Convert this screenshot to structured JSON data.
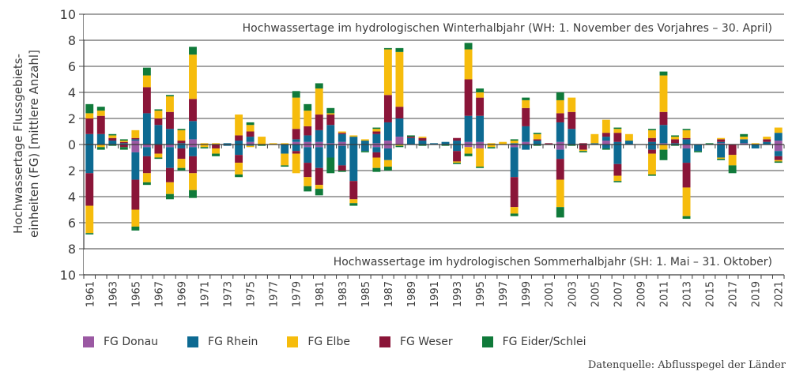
{
  "chart_data": {
    "type": "bar",
    "stacked": true,
    "diverging": true,
    "ylabel_line1": "Hochwassertage Flussgebiets-",
    "ylabel_line2": "einheiten (FG) [mittlere Anzahl]",
    "winter_title": "Hochwassertage im hydrologischen Winterhalbjahr (WH: 1. November des Vorjahres – 30. April)",
    "summer_title": "Hochwassertage im hydrologischen Sommerhalbjahr (SH: 1. Mai – 31. Oktober)",
    "ylim": [
      -10,
      10
    ],
    "yticks": [
      10,
      8,
      6,
      4,
      2,
      0,
      2,
      4,
      6,
      8,
      10
    ],
    "ytick_values": [
      10,
      8,
      6,
      4,
      2,
      0,
      -2,
      -4,
      -6,
      -8,
      -10
    ],
    "grid": true,
    "legend_position": "bottom",
    "years": [
      1961,
      1962,
      1963,
      1964,
      1965,
      1966,
      1967,
      1968,
      1969,
      1970,
      1971,
      1972,
      1973,
      1974,
      1975,
      1976,
      1977,
      1978,
      1979,
      1980,
      1981,
      1982,
      1983,
      1984,
      1985,
      1986,
      1987,
      1988,
      1989,
      1990,
      1991,
      1992,
      1993,
      1994,
      1995,
      1996,
      1997,
      1998,
      1999,
      2000,
      2001,
      2002,
      2003,
      2004,
      2005,
      2006,
      2007,
      2008,
      2009,
      2010,
      2011,
      2012,
      2013,
      2014,
      2015,
      2016,
      2017,
      2018,
      2019,
      2020,
      2021
    ],
    "xtick_labels": [
      "1961",
      "1963",
      "1965",
      "1967",
      "1969",
      "1971",
      "1973",
      "1975",
      "1977",
      "1979",
      "1981",
      "1983",
      "1985",
      "1987",
      "1989",
      "1991",
      "1993",
      "1995",
      "1997",
      "1999",
      "2001",
      "2003",
      "2005",
      "2007",
      "2009",
      "2011",
      "2013",
      "2015",
      "2017",
      "2019",
      "2021"
    ],
    "series": [
      {
        "name": "FG Donau",
        "color": "#9b59a3",
        "winter": [
          0,
          0,
          0,
          0,
          0.3,
          0,
          0,
          0,
          0,
          0.4,
          0,
          0,
          0,
          0,
          0.2,
          0,
          0,
          0,
          0.2,
          0.2,
          0.2,
          0.1,
          0.2,
          0,
          0,
          0.1,
          0.3,
          0.6,
          0,
          0,
          0,
          0,
          0,
          0.2,
          0.2,
          0,
          0,
          0,
          0.2,
          0,
          0,
          0.2,
          0,
          0,
          0,
          0.3,
          0,
          0,
          0,
          0,
          0.1,
          0,
          0,
          0,
          0,
          0.1,
          0,
          0.1,
          0,
          0,
          0.3
        ],
        "summer": [
          0,
          0,
          0,
          0,
          0.6,
          0.2,
          0,
          0.2,
          0,
          0.2,
          0,
          0,
          0,
          0,
          0,
          0,
          0,
          0,
          0,
          0.2,
          0.2,
          0,
          0.1,
          0,
          0,
          0.2,
          0.3,
          0,
          0,
          0,
          0,
          0,
          0,
          0.2,
          0.3,
          0,
          0,
          0.2,
          0,
          0,
          0,
          0.4,
          0,
          0,
          0,
          0,
          0,
          0,
          0,
          0,
          0,
          0,
          0.3,
          0,
          0,
          0,
          0,
          0,
          0,
          0,
          0.5
        ]
      },
      {
        "name": "FG Rhein",
        "color": "#0d6a92",
        "winter": [
          0.8,
          0.8,
          0.3,
          0.1,
          0.1,
          2.4,
          1.5,
          1.2,
          0.1,
          1.4,
          0,
          0,
          0.1,
          0.3,
          0.4,
          0,
          0,
          0,
          0.2,
          0.5,
          0.9,
          1.4,
          0.6,
          0.6,
          0.3,
          0.7,
          1.4,
          1.4,
          0.5,
          0.3,
          0.1,
          0.2,
          0.3,
          2.0,
          2.0,
          0,
          0,
          0.1,
          1.2,
          0.3,
          0,
          1.5,
          1.2,
          0,
          0.1,
          0.3,
          0.2,
          0.3,
          0,
          0.2,
          1.4,
          0.1,
          0.4,
          0,
          0,
          0.1,
          0,
          0.3,
          0,
          0.2,
          0.6
        ],
        "summer": [
          2.2,
          0,
          0,
          0,
          2.1,
          0.7,
          0,
          1.6,
          0.3,
          0.7,
          0,
          0,
          0.1,
          0.8,
          0.1,
          0,
          0,
          0.7,
          0.5,
          1.2,
          1.6,
          1.0,
          1.5,
          2.8,
          0.5,
          0.4,
          0.9,
          0,
          0,
          0,
          0,
          0,
          0.5,
          0,
          0,
          0,
          0,
          2.3,
          0.4,
          0,
          0,
          0.7,
          0,
          0,
          0,
          0.3,
          1.5,
          0,
          0,
          0.4,
          0,
          0,
          1.1,
          0.5,
          0,
          1.0,
          0,
          0,
          0.3,
          0,
          0.4
        ]
      },
      {
        "name": "FG Weser",
        "color": "#8a1538",
        "winter": [
          1.2,
          1.4,
          0.2,
          0.1,
          0.1,
          2.0,
          0.5,
          1.3,
          0.2,
          1.7,
          0,
          0,
          0,
          0.4,
          0.4,
          0,
          0,
          0,
          0.8,
          0.7,
          1.2,
          0.8,
          0.1,
          0,
          0,
          0.2,
          2.1,
          0.9,
          0.1,
          0.2,
          0,
          0,
          0.2,
          2.8,
          1.4,
          0,
          0,
          0,
          1.4,
          0.1,
          0.1,
          0.7,
          1.3,
          0.1,
          0,
          0.3,
          0.7,
          0,
          0,
          0.3,
          1.0,
          0.3,
          0.1,
          0,
          0,
          0.2,
          0,
          0,
          0,
          0.2,
          0
        ],
        "summer": [
          2.5,
          0,
          0,
          0.2,
          2.3,
          1.3,
          0.7,
          1.1,
          0.8,
          1.3,
          0,
          0.3,
          0,
          0.6,
          0,
          0,
          0,
          0,
          0.2,
          1.1,
          1.3,
          0,
          0.4,
          1.4,
          0,
          0.4,
          0,
          0,
          0,
          0,
          0,
          0,
          0.8,
          0,
          0,
          0,
          0,
          2.3,
          0,
          0,
          0,
          1.6,
          0,
          0.4,
          0,
          0,
          0.9,
          0,
          0,
          0.3,
          0,
          0,
          1.9,
          0,
          0,
          0,
          0.8,
          0,
          0,
          0,
          0.3
        ]
      },
      {
        "name": "FG Elbe",
        "color": "#f6bc0c",
        "winter": [
          0.4,
          0.4,
          0.2,
          0.1,
          0.6,
          0.9,
          0.6,
          1.2,
          0.8,
          3.4,
          0.1,
          0.1,
          0,
          1.6,
          0.5,
          0.6,
          0.1,
          0.1,
          2.4,
          1.2,
          2.0,
          0.1,
          0.1,
          0.1,
          0.1,
          0.2,
          3.5,
          4.2,
          0,
          0.1,
          0,
          0,
          0,
          2.3,
          0.4,
          0.1,
          0.2,
          0.2,
          0.6,
          0.4,
          0,
          1.0,
          1.1,
          0,
          0.7,
          1.0,
          0.3,
          0.5,
          0,
          0.6,
          2.8,
          0.2,
          0.6,
          0,
          0,
          0.1,
          0,
          0.2,
          0.1,
          0.2,
          0.4
        ],
        "summer": [
          2.1,
          0.2,
          0,
          0,
          1.3,
          0.7,
          0.3,
          0.9,
          0.7,
          1.3,
          0.2,
          0.4,
          0,
          0.9,
          0.1,
          0,
          0,
          0.9,
          1.5,
          0.7,
          0.3,
          0,
          0,
          0.3,
          0,
          0.8,
          0.5,
          0.1,
          0,
          0,
          0,
          0,
          0.1,
          0.5,
          1.4,
          0.2,
          0,
          0.5,
          0,
          0,
          0,
          2.1,
          0,
          0.1,
          0,
          0,
          0.4,
          0,
          0,
          1.6,
          0.4,
          0,
          2.2,
          0,
          0,
          0.1,
          0.8,
          0,
          0,
          0,
          0.1
        ],
        "summer_note": ""
      },
      {
        "name": "FG Eider/Schlei",
        "color": "#107a3a",
        "winter": [
          0.7,
          0.3,
          0.1,
          0.1,
          0,
          0.6,
          0.1,
          0.1,
          0.1,
          0.6,
          0,
          0,
          0,
          0,
          0.2,
          0,
          0,
          0,
          0.5,
          0.5,
          0.4,
          0.4,
          0,
          0,
          0,
          0.1,
          0.1,
          0.3,
          0.1,
          0,
          0,
          0,
          0,
          0.5,
          0.3,
          0,
          0,
          0.1,
          0.2,
          0.1,
          0,
          0.6,
          0,
          0,
          0,
          0,
          0.1,
          0,
          0,
          0.1,
          0.3,
          0.1,
          0.1,
          0,
          0.1,
          0,
          0,
          0.2,
          0,
          0,
          0
        ],
        "summer": [
          0.1,
          0.2,
          0.1,
          0.2,
          0.3,
          0.2,
          0.1,
          0.4,
          0.2,
          0.6,
          0.1,
          0.2,
          0,
          0.2,
          0,
          0.1,
          0,
          0.1,
          0,
          0.4,
          0.5,
          1.2,
          0.1,
          0.2,
          0.1,
          0.3,
          0.3,
          0.1,
          0,
          0.1,
          0,
          0.1,
          0.1,
          0.2,
          0.1,
          0.1,
          0,
          0.2,
          0,
          0.1,
          0,
          0.8,
          0.1,
          0.1,
          0,
          0.1,
          0.1,
          0,
          0,
          0.1,
          0.8,
          0.1,
          0.2,
          0.1,
          0,
          0.1,
          0.6,
          0,
          0,
          0,
          0.1
        ]
      }
    ]
  },
  "legend": [
    "FG Donau",
    "FG Rhein",
    "FG Elbe",
    "FG Weser",
    "FG Eider/Schlei"
  ],
  "legend_colors": [
    "#9b59a3",
    "#0d6a92",
    "#f6bc0c",
    "#8a1538",
    "#107a3a"
  ],
  "source": "Datenquelle: Abflusspegel der Länder"
}
